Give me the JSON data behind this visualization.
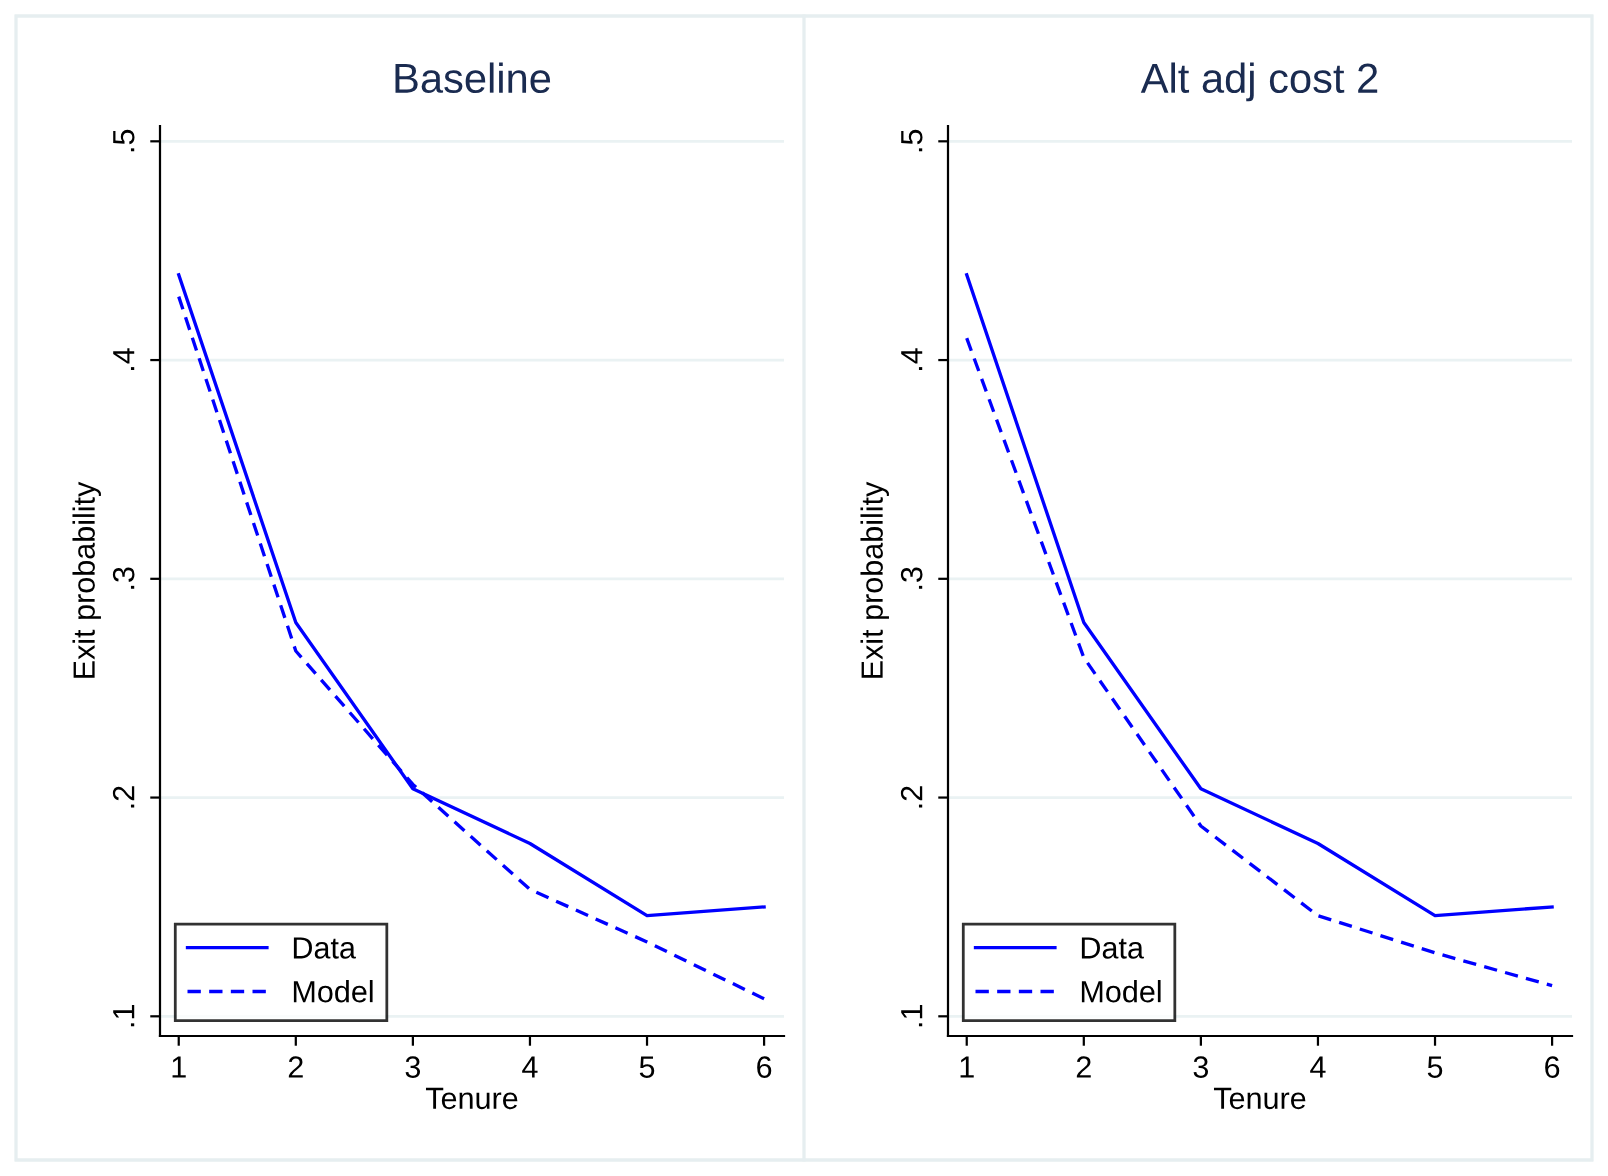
{
  "chart_data": [
    {
      "type": "line",
      "title": "Baseline",
      "xlabel": "Tenure",
      "ylabel": "Exit probability",
      "x": [
        1,
        2,
        3,
        4,
        5,
        6
      ],
      "xlim": [
        0.84,
        6.17
      ],
      "xticks": [
        1,
        2,
        3,
        4,
        5,
        6
      ],
      "ylim": [
        0.091,
        0.507
      ],
      "yticks": [
        {
          "value": 0.1,
          "label": ".1"
        },
        {
          "value": 0.2,
          "label": ".2"
        },
        {
          "value": 0.3,
          "label": ".3"
        },
        {
          "value": 0.4,
          "label": ".4"
        },
        {
          "value": 0.5,
          "label": ".5"
        }
      ],
      "grid": "y",
      "legend": "bottom left",
      "series": [
        {
          "name": "Data",
          "color": "#0000ff",
          "line_style": "solid",
          "values": [
            0.439,
            0.28,
            0.204,
            0.179,
            0.146,
            0.15
          ]
        },
        {
          "name": "Model",
          "color": "#0000ff",
          "line_style": "dashed",
          "values": [
            0.429,
            0.267,
            0.206,
            0.158,
            0.134,
            0.108
          ]
        }
      ]
    },
    {
      "type": "line",
      "title": "Alt adj cost 2",
      "xlabel": "Tenure",
      "ylabel": "Exit probability",
      "x": [
        1,
        2,
        3,
        4,
        5,
        6
      ],
      "xlim": [
        0.84,
        6.17
      ],
      "xticks": [
        1,
        2,
        3,
        4,
        5,
        6
      ],
      "ylim": [
        0.091,
        0.507
      ],
      "yticks": [
        {
          "value": 0.1,
          "label": ".1"
        },
        {
          "value": 0.2,
          "label": ".2"
        },
        {
          "value": 0.3,
          "label": ".3"
        },
        {
          "value": 0.4,
          "label": ".4"
        },
        {
          "value": 0.5,
          "label": ".5"
        }
      ],
      "grid": "y",
      "legend": "bottom left",
      "series": [
        {
          "name": "Data",
          "color": "#0000ff",
          "line_style": "solid",
          "values": [
            0.439,
            0.28,
            0.204,
            0.179,
            0.146,
            0.15
          ]
        },
        {
          "name": "Model",
          "color": "#0000ff",
          "line_style": "dashed",
          "values": [
            0.41,
            0.264,
            0.187,
            0.146,
            0.129,
            0.114
          ]
        }
      ]
    }
  ]
}
